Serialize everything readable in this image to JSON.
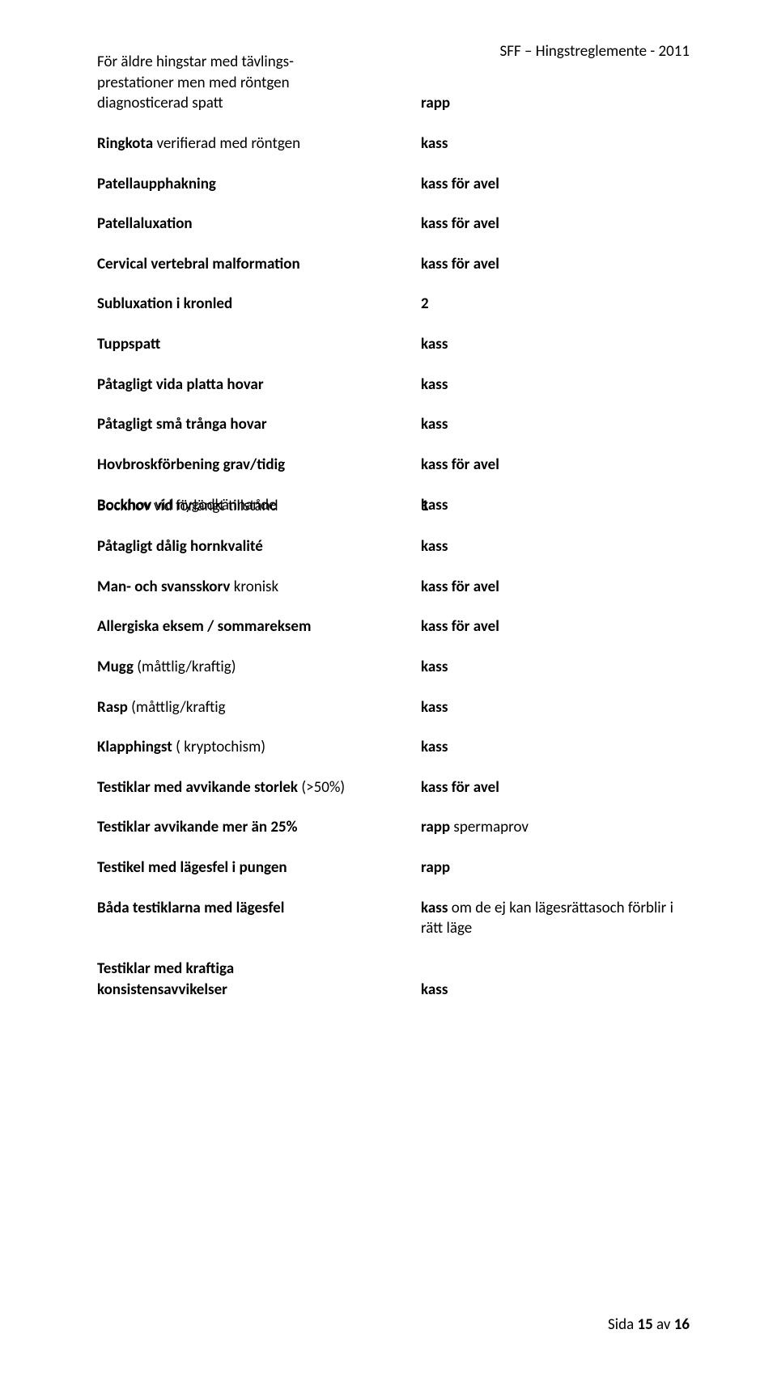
{
  "header": {
    "text": "SFF – Hingstreglemente - 2011"
  },
  "rows": [
    {
      "left_lines": [
        {
          "text": "För äldre hingstar med tävlings-",
          "bold": false
        },
        {
          "text": "prestationer men med röntgen",
          "bold": false
        },
        {
          "text": "diagnosticerad spatt",
          "bold": false
        }
      ],
      "right": "rapp",
      "right_bold": true,
      "right_align_last": true
    },
    {
      "left_lines": [
        {
          "text": "Ringkota",
          "bold": true
        },
        {
          "text": "       verifierad med röntgen",
          "bold": false,
          "inline": true
        }
      ],
      "left_inline": true,
      "right": "kass",
      "right_bold": true
    },
    {
      "left_lines": [
        {
          "text": "Patellaupphakning",
          "bold": true
        }
      ],
      "right": "kass för avel",
      "right_bold": true
    },
    {
      "left_lines": [
        {
          "text": "Patellaluxation",
          "bold": true
        }
      ],
      "right": "kass för avel",
      "right_bold": true
    },
    {
      "left_lines": [
        {
          "text": "Cervical vertebral malformation",
          "bold": true
        }
      ],
      "right": "kass för avel",
      "right_bold": true
    },
    {
      "left_lines": [
        {
          "text": "Subluxation i kronled",
          "bold": true
        }
      ],
      "right": "2",
      "right_bold": true
    },
    {
      "left_lines": [
        {
          "text": "Tuppspatt",
          "bold": true
        }
      ],
      "right": "kass",
      "right_bold": true
    },
    {
      "left_lines": [
        {
          "text": "Påtagligt vida platta hovar",
          "bold": true
        }
      ],
      "right": "kass",
      "right_bold": true
    },
    {
      "left_lines": [
        {
          "text": "Påtagligt små trånga hovar",
          "bold": true
        }
      ],
      "right": "kass",
      "right_bold": true
    },
    {
      "left_lines": [
        {
          "text": "Hovbroskförbening grav/tidig",
          "bold": true
        }
      ],
      "right": "kass för avel",
      "right_bold": true
    },
    {
      "left_lines": [
        {
          "text": "Bockhov  vid nygodkännande",
          "bold_prefix": "Bockhov",
          "rest": "  vid nygodkännande"
        }
      ],
      "right": "kass",
      "right_bold": true,
      "no_gap": true
    },
    {
      "left_lines": [
        {
          "text": "Bockhov vid förlängt tillstånd",
          "bold": false
        }
      ],
      "right": "1",
      "right_bold": true,
      "tight_top": true
    },
    {
      "left_lines": [
        {
          "text": "Påtagligt dålig hornkvalité",
          "bold": true
        }
      ],
      "right": "kass",
      "right_bold": true
    },
    {
      "left_lines": [
        {
          "text": "Man- och svansskorv kronisk",
          "bold_prefix": "Man- och svansskorv",
          "rest": " kronisk"
        }
      ],
      "right": "kass för avel",
      "right_bold": true
    },
    {
      "left_lines": [
        {
          "text": " Allergiska eksem / sommareksem",
          "bold": true
        }
      ],
      "right": "kass för avel",
      "right_bold": true
    },
    {
      "left_lines": [
        {
          "text": "Mugg (måttlig/kraftig)",
          "bold_prefix": "Mugg",
          "rest": " (måttlig/kraftig)"
        }
      ],
      "right": "kass",
      "right_bold": true
    },
    {
      "left_lines": [
        {
          "text": "Rasp (måttlig/kraftig",
          "bold_prefix": "Rasp",
          "rest": " (måttlig/kraftig"
        }
      ],
      "right": "kass",
      "right_bold": true
    },
    {
      "left_lines": [
        {
          "text": "Klapphingst ( kryptochism)",
          "bold_prefix": "Klapphingst",
          "rest": " ( kryptochism)"
        }
      ],
      "right": "kass",
      "right_bold": true
    },
    {
      "left_lines": [
        {
          "text": "Testiklar med avvikande storlek (>50%)",
          "bold_prefix": "Testiklar med avvikande storlek",
          "rest": " (>50%)"
        }
      ],
      "left_wide": true,
      "right": "kass för avel",
      "right_bold": true
    },
    {
      "left_lines": [
        {
          "text": "Testiklar avvikande mer än 25%",
          "bold": true
        }
      ],
      "right": "rapp  spermaprov",
      "right_bold_prefix": "rapp",
      "right_rest": "  spermaprov"
    },
    {
      "left_lines": [
        {
          "text": "Testikel med lägesfel i pungen",
          "bold": true
        }
      ],
      "right": "rapp",
      "right_bold": true
    },
    {
      "left_lines": [
        {
          "text": "Båda testiklarna med lägesfel",
          "bold": true
        }
      ],
      "right_lines": [
        {
          "bold_prefix": "kass",
          "rest": "  om de ej kan lägesrättas"
        },
        {
          "text": "och förblir i rätt läge"
        }
      ]
    },
    {
      "left_lines": [
        {
          "text": "Testiklar med kraftiga",
          "bold": true
        },
        {
          "text": "konsistensavvikelser",
          "bold": true
        }
      ],
      "right": "kass",
      "right_bold": true,
      "right_align_last": true
    }
  ],
  "footer": {
    "page_label": "Sida ",
    "page_num": "15",
    "of_label": " av ",
    "total": "16"
  }
}
